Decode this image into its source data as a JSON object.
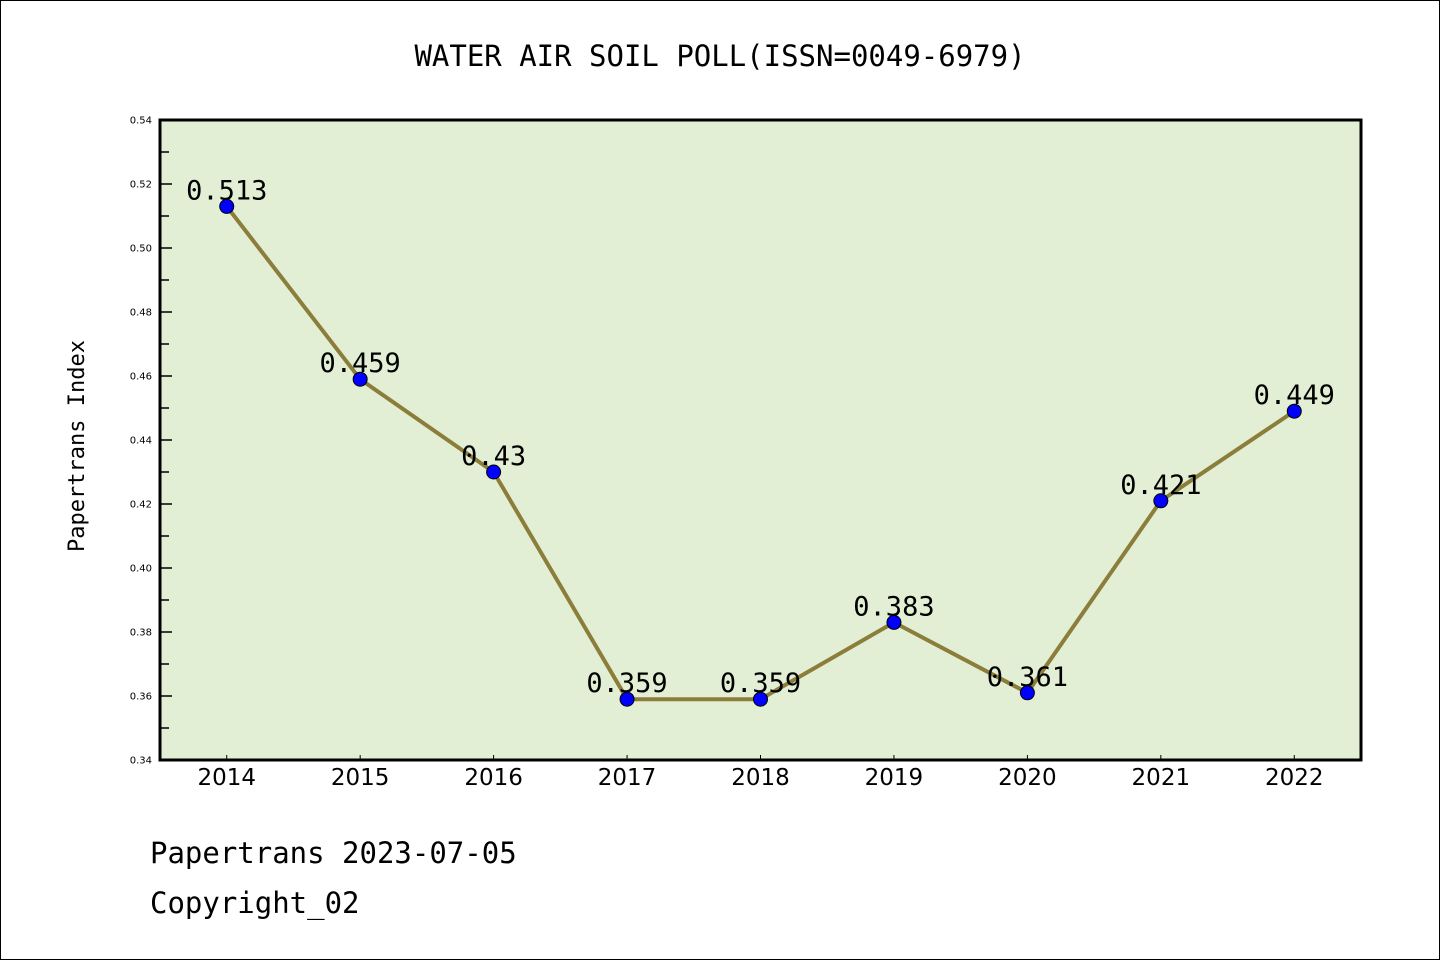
{
  "chart_data": {
    "type": "line",
    "title": "WATER AIR SOIL POLL(ISSN=0049-6979)",
    "xlabel": "",
    "ylabel": "Papertrans Index",
    "x": [
      2014,
      2015,
      2016,
      2017,
      2018,
      2019,
      2020,
      2021,
      2022
    ],
    "categories": [
      "2014",
      "2015",
      "2016",
      "2017",
      "2018",
      "2019",
      "2020",
      "2021",
      "2022"
    ],
    "series": [
      {
        "name": "Papertrans Index",
        "values": [
          0.513,
          0.459,
          0.43,
          0.359,
          0.359,
          0.383,
          0.361,
          0.421,
          0.449
        ]
      }
    ],
    "data_labels": [
      "0.513",
      "0.459",
      "0.43",
      "0.359",
      "0.359",
      "0.383",
      "0.361",
      "0.421",
      "0.449"
    ],
    "ylim": [
      0.34,
      0.54
    ],
    "xlim": [
      2013.5,
      2022.5
    ],
    "yticks": [
      "0.34",
      "0.36",
      "0.38",
      "0.40",
      "0.42",
      "0.44",
      "0.46",
      "0.48",
      "0.50",
      "0.52",
      "0.54"
    ],
    "grid": false,
    "colors": {
      "line": "#8b7d3a",
      "marker": "#0000ff",
      "plot_bg": "#e2efd5"
    }
  },
  "footer": {
    "line1": "Papertrans 2023-07-05",
    "line2": "Copyright_02"
  }
}
